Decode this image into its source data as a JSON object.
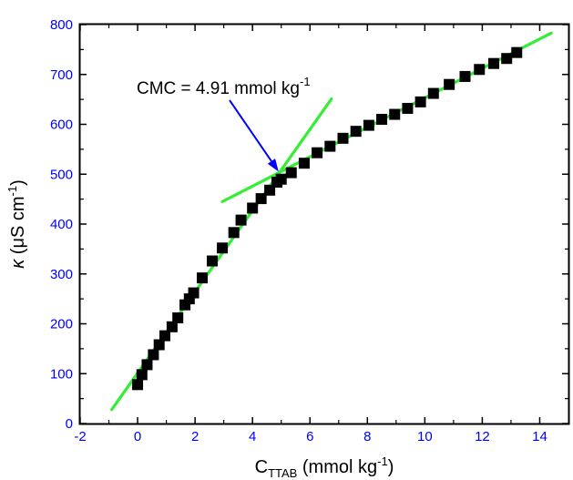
{
  "chart_data": {
    "type": "scatter",
    "xlabel": {
      "base": "C",
      "sub": "TTAB",
      "text": " (mmol kg",
      "sup": "-1",
      "tail": ")"
    },
    "ylabel": {
      "base": "κ",
      "text": " (μS cm",
      "sup": "-1",
      "tail": ")"
    },
    "xlim": [
      -2,
      15
    ],
    "ylim": [
      0,
      800
    ],
    "xticks": [
      "-2",
      "0",
      "2",
      "4",
      "6",
      "8",
      "10",
      "12",
      "14"
    ],
    "yticks": [
      "0",
      "100",
      "200",
      "300",
      "400",
      "500",
      "600",
      "700",
      "800"
    ],
    "grid": false,
    "annotation": {
      "text": "CMC = 4.91 mmol kg",
      "sup": "-1",
      "arrow_to": [
        4.91,
        505
      ]
    },
    "series": [
      {
        "marker": "square",
        "color": "#000000",
        "points": [
          [
            0.0,
            78
          ],
          [
            0.15,
            98
          ],
          [
            0.33,
            118
          ],
          [
            0.55,
            138
          ],
          [
            0.75,
            158
          ],
          [
            0.95,
            176
          ],
          [
            1.2,
            194
          ],
          [
            1.4,
            212
          ],
          [
            1.65,
            238
          ],
          [
            1.8,
            250
          ],
          [
            1.95,
            262
          ],
          [
            2.25,
            292
          ],
          [
            2.6,
            326
          ],
          [
            2.95,
            352
          ],
          [
            3.35,
            383
          ],
          [
            3.6,
            408
          ],
          [
            4.0,
            432
          ],
          [
            4.3,
            451
          ],
          [
            4.6,
            468
          ],
          [
            4.85,
            484
          ],
          [
            5.0,
            490
          ],
          [
            5.35,
            503
          ],
          [
            5.8,
            522
          ],
          [
            6.25,
            543
          ],
          [
            6.7,
            556
          ],
          [
            7.15,
            572
          ],
          [
            7.6,
            586
          ],
          [
            8.05,
            598
          ],
          [
            8.5,
            610
          ],
          [
            8.95,
            620
          ],
          [
            9.4,
            632
          ],
          [
            9.85,
            645
          ],
          [
            10.3,
            662
          ],
          [
            10.85,
            680
          ],
          [
            11.4,
            696
          ],
          [
            11.9,
            710
          ],
          [
            12.4,
            722
          ],
          [
            12.85,
            732
          ],
          [
            13.2,
            744
          ]
        ]
      },
      {
        "type": "line",
        "color": "#33ee33",
        "points": [
          [
            -0.9,
            28
          ],
          [
            6.75,
            651
          ]
        ]
      },
      {
        "type": "line",
        "color": "#33ee33",
        "points": [
          [
            2.95,
            445
          ],
          [
            14.4,
            783
          ]
        ]
      }
    ]
  }
}
